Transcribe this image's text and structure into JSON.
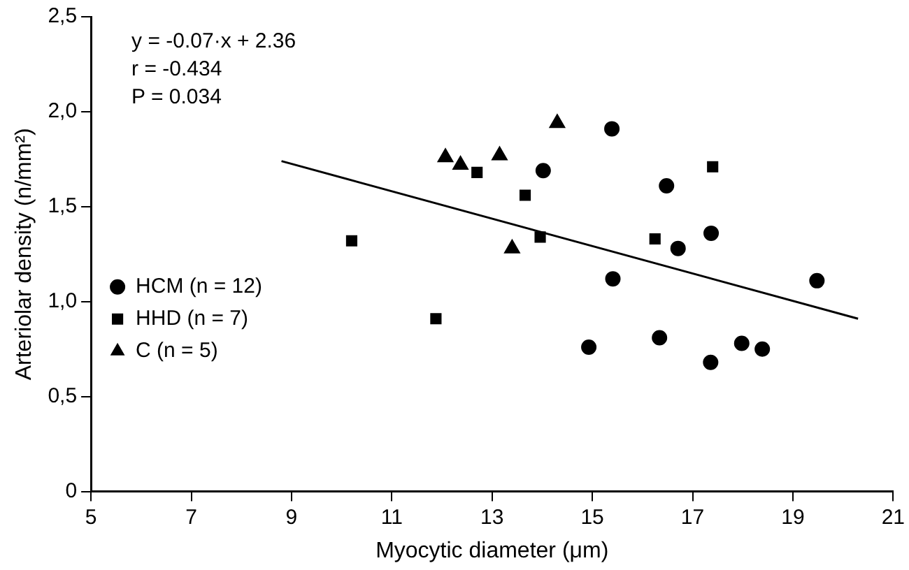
{
  "chart_data": {
    "type": "scatter",
    "xlabel": "Myocytic diameter (μm)",
    "ylabel": "Arteriolar density (n/mm²)",
    "xlim": [
      5,
      21
    ],
    "xticks": [
      5,
      7,
      9,
      11,
      13,
      15,
      17,
      19,
      21
    ],
    "ylim": [
      0,
      2.5
    ],
    "yticks": [
      0,
      {
        "value": 0.5,
        "label": "0,5"
      },
      {
        "value": 1,
        "label": "1,0"
      },
      {
        "value": 1.5,
        "label": "1,5"
      },
      {
        "value": 2,
        "label": "2,0"
      },
      {
        "value": 2.5,
        "label": "2,5"
      }
    ],
    "grid": false,
    "legend": "left",
    "annotations": [
      "y = -0.07·x + 2.36",
      "r = -0.434",
      "P = 0.034"
    ],
    "series": [
      {
        "name": "HCM (n = 12)",
        "color": "#000000",
        "marker": "circle",
        "x": [
          14.02,
          15.39,
          16.48,
          15.41,
          16.71,
          17.37,
          19.48,
          14.93,
          16.34,
          17.36,
          17.98,
          18.39
        ],
        "values": [
          1.69,
          1.91,
          1.61,
          1.12,
          1.28,
          1.36,
          1.11,
          0.76,
          0.81,
          0.68,
          0.78,
          0.75
        ]
      },
      {
        "name": "HHD (n = 7)",
        "color": "#000000",
        "marker": "square",
        "x": [
          10.2,
          11.88,
          12.7,
          13.66,
          13.96,
          16.25,
          17.4
        ],
        "values": [
          1.32,
          0.91,
          1.68,
          1.56,
          1.34,
          1.33,
          1.71
        ]
      },
      {
        "name": "C (n = 5)",
        "color": "#000000",
        "marker": "triangle",
        "x": [
          12.07,
          12.37,
          13.15,
          13.4,
          14.3
        ],
        "values": [
          1.76,
          1.72,
          1.77,
          1.28,
          1.94
        ]
      },
      {
        "type": "line",
        "color": "#000000",
        "marker": "none",
        "x": [
          8.8,
          20.3
        ],
        "values": [
          1.74,
          0.91
        ]
      }
    ]
  }
}
